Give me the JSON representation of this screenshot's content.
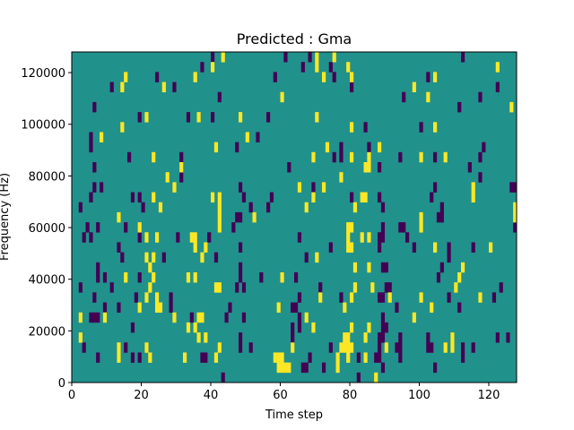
{
  "chart_data": {
    "type": "heatmap",
    "title": "Predicted : Gma",
    "xlabel": "Time step",
    "ylabel": "Frequency (Hz)",
    "xlim": [
      0,
      128
    ],
    "ylim": [
      0,
      128000
    ],
    "xticks": [
      0,
      20,
      40,
      60,
      80,
      100,
      120
    ],
    "yticks": [
      0,
      20000,
      40000,
      60000,
      80000,
      100000,
      120000
    ],
    "n_time_steps": 128,
    "n_freq_bins": 33,
    "colormap": "viridis",
    "colors": {
      "low": "#440154",
      "mid": "#21918c",
      "high": "#fde725"
    },
    "background_level": "mid",
    "cells_note": "cells given as [time_step, freq_bin]; all other cells are mid level",
    "low_cells": [
      [
        40,
        32
      ],
      [
        37,
        31
      ],
      [
        24,
        30
      ],
      [
        11,
        29
      ],
      [
        29,
        29
      ],
      [
        42,
        28
      ],
      [
        6,
        27
      ],
      [
        19,
        26
      ],
      [
        33,
        26
      ],
      [
        40,
        26
      ],
      [
        5,
        24
      ],
      [
        5,
        23
      ],
      [
        47,
        23
      ],
      [
        16,
        22
      ],
      [
        31,
        22
      ],
      [
        6,
        21
      ],
      [
        31,
        20
      ],
      [
        61,
        32
      ],
      [
        68,
        32
      ],
      [
        112,
        32
      ],
      [
        66,
        31
      ],
      [
        74,
        31
      ],
      [
        58,
        30
      ],
      [
        75,
        30
      ],
      [
        102,
        30
      ],
      [
        80,
        29
      ],
      [
        122,
        29
      ],
      [
        95,
        28
      ],
      [
        117,
        28
      ],
      [
        111,
        27
      ],
      [
        56,
        26
      ],
      [
        84,
        25
      ],
      [
        100,
        25
      ],
      [
        53,
        24
      ],
      [
        77,
        23
      ],
      [
        85,
        23
      ],
      [
        118,
        23
      ],
      [
        75,
        22
      ],
      [
        77,
        22
      ],
      [
        94,
        22
      ],
      [
        104,
        22
      ],
      [
        117,
        22
      ],
      [
        62,
        21
      ],
      [
        88,
        21
      ],
      [
        114,
        21
      ],
      [
        117,
        20
      ],
      [
        69,
        19
      ],
      [
        104,
        19
      ],
      [
        126,
        19
      ],
      [
        127,
        19
      ],
      [
        49,
        18
      ],
      [
        57,
        18
      ],
      [
        80,
        18
      ],
      [
        88,
        18
      ],
      [
        103,
        18
      ],
      [
        51,
        17
      ],
      [
        56,
        17
      ],
      [
        89,
        17
      ],
      [
        106,
        17
      ],
      [
        105,
        16
      ],
      [
        106,
        16
      ],
      [
        6,
        19
      ],
      [
        8,
        19
      ],
      [
        48,
        19
      ],
      [
        5,
        18
      ],
      [
        17,
        18
      ],
      [
        19,
        18
      ],
      [
        2,
        17
      ],
      [
        20,
        17
      ],
      [
        47,
        16
      ],
      [
        48,
        16
      ],
      [
        4,
        15
      ],
      [
        7,
        15
      ],
      [
        15,
        15
      ],
      [
        46,
        15
      ],
      [
        3,
        14
      ],
      [
        5,
        14
      ],
      [
        19,
        14
      ],
      [
        30,
        14
      ],
      [
        39,
        14
      ],
      [
        13,
        13
      ],
      [
        48,
        13
      ],
      [
        14,
        12
      ],
      [
        26,
        12
      ],
      [
        41,
        12
      ],
      [
        7,
        11
      ],
      [
        48,
        11
      ],
      [
        7,
        10
      ],
      [
        9,
        10
      ],
      [
        19,
        10
      ],
      [
        48,
        10
      ],
      [
        54,
        10
      ],
      [
        64,
        10
      ],
      [
        2,
        9
      ],
      [
        11,
        9
      ],
      [
        47,
        9
      ],
      [
        49,
        9
      ],
      [
        6,
        8
      ],
      [
        18,
        8
      ],
      [
        28,
        8
      ],
      [
        9,
        7
      ],
      [
        13,
        7
      ],
      [
        28,
        7
      ],
      [
        45,
        7
      ],
      [
        63,
        7
      ],
      [
        5,
        6
      ],
      [
        6,
        6
      ],
      [
        7,
        6
      ],
      [
        34,
        6
      ],
      [
        44,
        6
      ],
      [
        49,
        6
      ],
      [
        17,
        5
      ],
      [
        63,
        5
      ],
      [
        48,
        4
      ],
      [
        63,
        4
      ],
      [
        3,
        3
      ],
      [
        15,
        3
      ],
      [
        48,
        3
      ],
      [
        51,
        3
      ],
      [
        7,
        2
      ],
      [
        17,
        2
      ],
      [
        19,
        2
      ],
      [
        37,
        2
      ],
      [
        38,
        2
      ],
      [
        43,
        0
      ],
      [
        89,
        15
      ],
      [
        94,
        15
      ],
      [
        95,
        15
      ],
      [
        127,
        15
      ],
      [
        65,
        14
      ],
      [
        88,
        14
      ],
      [
        89,
        14
      ],
      [
        96,
        14
      ],
      [
        74,
        13
      ],
      [
        88,
        13
      ],
      [
        98,
        13
      ],
      [
        108,
        13
      ],
      [
        115,
        13
      ],
      [
        67,
        12
      ],
      [
        108,
        12
      ],
      [
        89,
        11
      ],
      [
        90,
        11
      ],
      [
        106,
        11
      ],
      [
        105,
        10
      ],
      [
        71,
        9
      ],
      [
        90,
        9
      ],
      [
        91,
        9
      ],
      [
        123,
        9
      ],
      [
        65,
        8
      ],
      [
        77,
        8
      ],
      [
        88,
        8
      ],
      [
        89,
        8
      ],
      [
        108,
        8
      ],
      [
        121,
        8
      ],
      [
        64,
        7
      ],
      [
        93,
        7
      ],
      [
        111,
        7
      ],
      [
        65,
        6
      ],
      [
        89,
        6
      ],
      [
        65,
        5
      ],
      [
        89,
        5
      ],
      [
        90,
        5
      ],
      [
        88,
        4
      ],
      [
        89,
        4
      ],
      [
        94,
        4
      ],
      [
        102,
        4
      ],
      [
        122,
        4
      ],
      [
        125,
        4
      ],
      [
        74,
        3
      ],
      [
        88,
        3
      ],
      [
        93,
        3
      ],
      [
        94,
        3
      ],
      [
        102,
        3
      ],
      [
        103,
        3
      ],
      [
        112,
        3
      ],
      [
        115,
        3
      ],
      [
        68,
        2
      ],
      [
        82,
        2
      ],
      [
        87,
        2
      ],
      [
        88,
        2
      ],
      [
        94,
        2
      ],
      [
        112,
        2
      ],
      [
        66,
        1
      ],
      [
        67,
        1
      ],
      [
        72,
        1
      ],
      [
        89,
        1
      ],
      [
        104,
        1
      ],
      [
        82,
        0
      ]
    ],
    "high_cells": [
      [
        43,
        32
      ],
      [
        40,
        31
      ],
      [
        15,
        30
      ],
      [
        35,
        30
      ],
      [
        14,
        29
      ],
      [
        26,
        29
      ],
      [
        21,
        26
      ],
      [
        36,
        26
      ],
      [
        48,
        26
      ],
      [
        14,
        25
      ],
      [
        8,
        24
      ],
      [
        41,
        23
      ],
      [
        23,
        22
      ],
      [
        31,
        21
      ],
      [
        27,
        20
      ],
      [
        70,
        32
      ],
      [
        75,
        32
      ],
      [
        70,
        31
      ],
      [
        79,
        31
      ],
      [
        122,
        31
      ],
      [
        72,
        30
      ],
      [
        80,
        30
      ],
      [
        104,
        30
      ],
      [
        98,
        29
      ],
      [
        60,
        28
      ],
      [
        102,
        28
      ],
      [
        126,
        27
      ],
      [
        70,
        26
      ],
      [
        80,
        25
      ],
      [
        104,
        25
      ],
      [
        50,
        24
      ],
      [
        73,
        23
      ],
      [
        88,
        23
      ],
      [
        69,
        22
      ],
      [
        80,
        22
      ],
      [
        85,
        22
      ],
      [
        100,
        22
      ],
      [
        107,
        22
      ],
      [
        84,
        21
      ],
      [
        85,
        21
      ],
      [
        77,
        20
      ],
      [
        65,
        19
      ],
      [
        72,
        19
      ],
      [
        115,
        19
      ],
      [
        69,
        18
      ],
      [
        83,
        18
      ],
      [
        84,
        18
      ],
      [
        115,
        18
      ],
      [
        67,
        17
      ],
      [
        81,
        17
      ],
      [
        127,
        17
      ],
      [
        52,
        16
      ],
      [
        100,
        16
      ],
      [
        127,
        16
      ],
      [
        29,
        19
      ],
      [
        23,
        18
      ],
      [
        40,
        18
      ],
      [
        42,
        18
      ],
      [
        25,
        17
      ],
      [
        42,
        17
      ],
      [
        13,
        16
      ],
      [
        42,
        16
      ],
      [
        19,
        15
      ],
      [
        42,
        15
      ],
      [
        21,
        14
      ],
      [
        24,
        14
      ],
      [
        34,
        14
      ],
      [
        35,
        14
      ],
      [
        35,
        13
      ],
      [
        38,
        13
      ],
      [
        21,
        12
      ],
      [
        23,
        12
      ],
      [
        37,
        12
      ],
      [
        22,
        11
      ],
      [
        15,
        10
      ],
      [
        23,
        10
      ],
      [
        33,
        10
      ],
      [
        35,
        10
      ],
      [
        60,
        10
      ],
      [
        22,
        9
      ],
      [
        41,
        9
      ],
      [
        42,
        9
      ],
      [
        21,
        8
      ],
      [
        24,
        8
      ],
      [
        19,
        7
      ],
      [
        24,
        7
      ],
      [
        25,
        7
      ],
      [
        59,
        7
      ],
      [
        2,
        6
      ],
      [
        9,
        6
      ],
      [
        29,
        6
      ],
      [
        36,
        6
      ],
      [
        37,
        6
      ],
      [
        33,
        5
      ],
      [
        35,
        5
      ],
      [
        2,
        4
      ],
      [
        36,
        4
      ],
      [
        38,
        4
      ],
      [
        13,
        3
      ],
      [
        21,
        3
      ],
      [
        42,
        3
      ],
      [
        63,
        3
      ],
      [
        13,
        2
      ],
      [
        22,
        2
      ],
      [
        32,
        2
      ],
      [
        41,
        2
      ],
      [
        58,
        2
      ],
      [
        59,
        2
      ],
      [
        60,
        2
      ],
      [
        59,
        1
      ],
      [
        60,
        1
      ],
      [
        61,
        1
      ],
      [
        62,
        1
      ],
      [
        79,
        15
      ],
      [
        80,
        15
      ],
      [
        100,
        15
      ],
      [
        79,
        14
      ],
      [
        83,
        14
      ],
      [
        85,
        14
      ],
      [
        79,
        13
      ],
      [
        80,
        13
      ],
      [
        104,
        13
      ],
      [
        120,
        13
      ],
      [
        70,
        12
      ],
      [
        81,
        11
      ],
      [
        85,
        11
      ],
      [
        112,
        11
      ],
      [
        111,
        10
      ],
      [
        81,
        9
      ],
      [
        86,
        9
      ],
      [
        110,
        9
      ],
      [
        71,
        8
      ],
      [
        80,
        8
      ],
      [
        91,
        8
      ],
      [
        100,
        8
      ],
      [
        117,
        8
      ],
      [
        78,
        7
      ],
      [
        103,
        7
      ],
      [
        67,
        6
      ],
      [
        98,
        6
      ],
      [
        69,
        5
      ],
      [
        80,
        5
      ],
      [
        85,
        5
      ],
      [
        78,
        4
      ],
      [
        79,
        4
      ],
      [
        84,
        4
      ],
      [
        109,
        4
      ],
      [
        77,
        3
      ],
      [
        78,
        3
      ],
      [
        79,
        3
      ],
      [
        80,
        3
      ],
      [
        90,
        3
      ],
      [
        107,
        3
      ],
      [
        109,
        3
      ],
      [
        76,
        2
      ],
      [
        79,
        2
      ],
      [
        84,
        2
      ],
      [
        76,
        1
      ],
      [
        87,
        0
      ]
    ]
  }
}
